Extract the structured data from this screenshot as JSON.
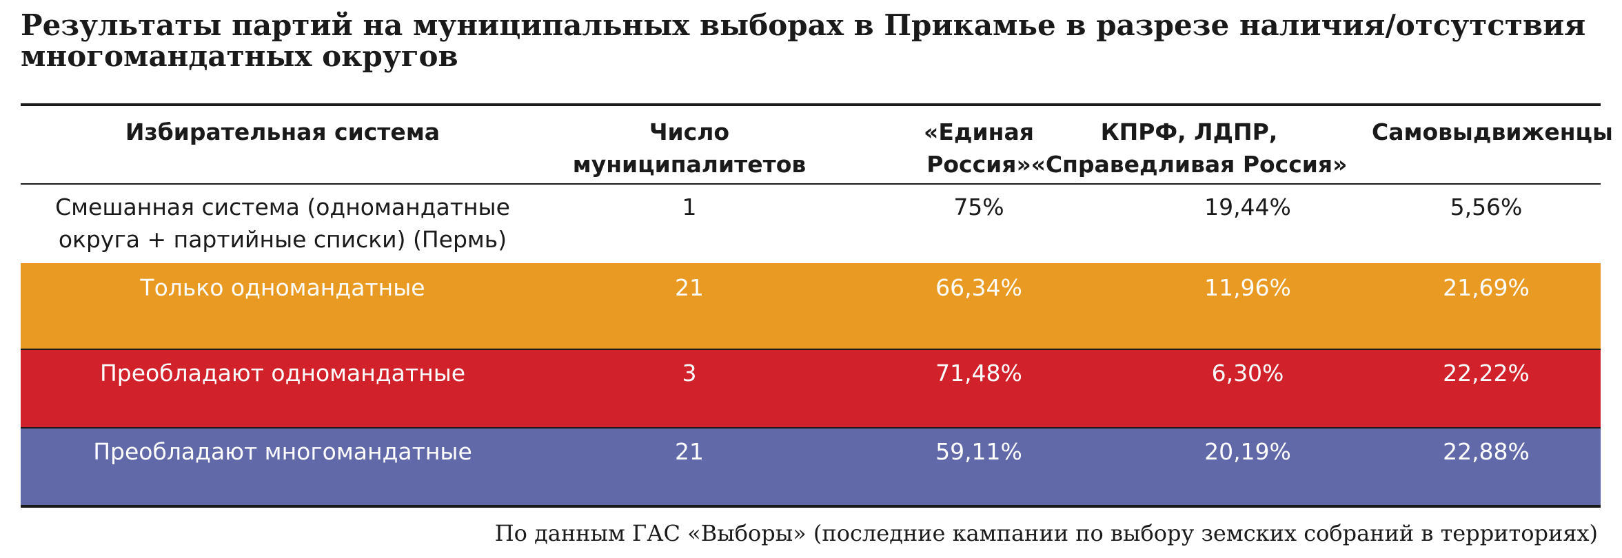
{
  "title": "Результаты партий на муниципальных выборах в Прикамье в разрезе наличия/отсутствия многомандатных округов",
  "source": "По данным ГАС «Выборы» (последние кампании по выбору земских собраний в территориях)",
  "colors": {
    "text": "#1a1a1a",
    "row_orange": "#E89A22",
    "row_red": "#D1212A",
    "row_blue": "#6169A8"
  },
  "chart_data": {
    "type": "table",
    "title": "Результаты партий на муниципальных выборах в Прикамье в разрезе наличия/отсутствия многомандатных округов",
    "columns": [
      "Избирательная система",
      "Число муниципалитетов",
      "«Единая Россия»",
      "КПРФ, ЛДПР, «Справедливая Россия»",
      "Самовыдвиженцы"
    ],
    "rows": [
      {
        "system": "Смешанная система (одномандатные округа + партийные списки) (Пермь)",
        "count": "1",
        "er": "75%",
        "opposition": "19,44%",
        "independents": "5,56%",
        "color": ""
      },
      {
        "system": "Только одномандатные",
        "count": "21",
        "er": "66,34%",
        "opposition": "11,96%",
        "independents": "21,69%",
        "color": "#E89A22"
      },
      {
        "system": "Преобладают одномандатные",
        "count": "3",
        "er": "71,48%",
        "opposition": "6,30%",
        "independents": "22,22%",
        "color": "#D1212A"
      },
      {
        "system": "Преобладают многомандатные",
        "count": "21",
        "er": "59,11%",
        "opposition": "20,19%",
        "independents": "22,88%",
        "color": "#6169A8"
      }
    ]
  }
}
